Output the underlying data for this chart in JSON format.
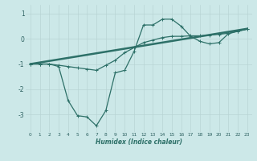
{
  "xlabel": "Humidex (Indice chaleur)",
  "bg_color": "#cce8e8",
  "grid_color": "#b8d4d4",
  "line_color": "#2d7068",
  "xlabel_color": "#2d7068",
  "xlim": [
    -0.5,
    23.5
  ],
  "ylim": [
    -3.7,
    1.35
  ],
  "yticks": [
    -3,
    -2,
    -1,
    0,
    1
  ],
  "xticks": [
    0,
    1,
    2,
    3,
    4,
    5,
    6,
    7,
    8,
    9,
    10,
    11,
    12,
    13,
    14,
    15,
    16,
    17,
    18,
    19,
    20,
    21,
    22,
    23
  ],
  "series1_x": [
    0,
    1,
    2,
    3,
    4,
    5,
    6,
    7,
    8,
    9,
    10,
    11,
    12,
    13,
    14,
    15,
    16,
    17,
    18,
    19,
    20,
    21,
    22,
    23
  ],
  "series1_y": [
    -1.0,
    -1.0,
    -1.0,
    -1.1,
    -2.45,
    -3.05,
    -3.1,
    -3.45,
    -2.85,
    -1.35,
    -1.25,
    -0.5,
    0.55,
    0.55,
    0.78,
    0.78,
    0.5,
    0.1,
    -0.1,
    -0.2,
    -0.15,
    0.2,
    0.3,
    0.4
  ],
  "series2_x": [
    0,
    23
  ],
  "series2_y": [
    -1.0,
    0.4
  ],
  "series3_x": [
    0,
    1,
    2,
    3,
    4,
    5,
    6,
    7,
    8,
    9,
    10,
    11,
    12,
    13,
    14,
    15,
    16,
    17,
    18,
    19,
    20,
    21,
    22,
    23
  ],
  "series3_y": [
    -1.0,
    -1.0,
    -1.0,
    -1.05,
    -1.1,
    -1.15,
    -1.2,
    -1.25,
    -1.05,
    -0.85,
    -0.55,
    -0.35,
    -0.15,
    -0.05,
    0.05,
    0.1,
    0.1,
    0.12,
    0.12,
    0.15,
    0.18,
    0.22,
    0.3,
    0.38
  ],
  "lw1": 0.9,
  "lw2": 1.8,
  "lw3": 0.9,
  "ms": 2.5
}
